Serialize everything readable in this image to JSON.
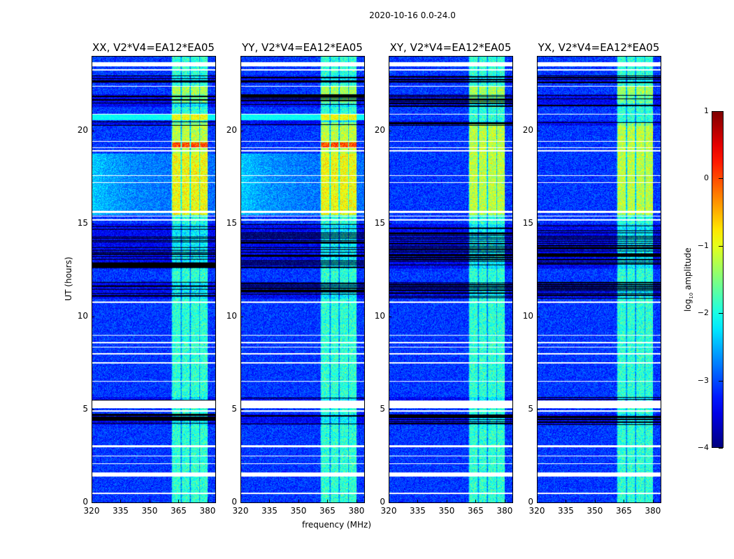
{
  "chart_data": {
    "type": "heatmap",
    "title": "2020-10-16 0.0-24.0",
    "xlabel": "frequency (MHz)",
    "ylabel": "UT (hours)",
    "xlim": [
      320,
      384
    ],
    "ylim": [
      0,
      24
    ],
    "xticks": [
      320,
      335,
      350,
      365,
      380
    ],
    "xtick_labels": [
      "320",
      "335",
      "350",
      "365",
      "380"
    ],
    "yticks": [
      0,
      5,
      10,
      15,
      20
    ],
    "ytick_labels": [
      "0",
      "5",
      "10",
      "15",
      "20"
    ],
    "panels": [
      {
        "title": "XX, V2*V4=EA12*EA05",
        "pol": "parallel"
      },
      {
        "title": "YY, V2*V4=EA12*EA05",
        "pol": "parallel"
      },
      {
        "title": "XY, V2*V4=EA12*EA05",
        "pol": "cross"
      },
      {
        "title": "YX, V2*V4=EA12*EA05",
        "pol": "cross"
      }
    ],
    "rfi_band_mhz": [
      361,
      380
    ],
    "flagged_hours": [
      [
        23.5,
        23.7
      ],
      [
        23.25,
        23.35
      ],
      [
        22.4,
        22.45
      ],
      [
        20.9,
        20.95
      ],
      [
        19.42,
        19.48
      ],
      [
        19.08,
        19.14
      ],
      [
        18.9,
        19.0
      ],
      [
        17.58,
        17.63
      ],
      [
        17.22,
        17.27
      ],
      [
        15.6,
        15.7
      ],
      [
        15.4,
        15.45
      ],
      [
        15.2,
        15.28
      ],
      [
        10.75,
        10.85
      ],
      [
        9.0,
        9.05
      ],
      [
        8.6,
        8.65
      ],
      [
        8.35,
        8.4
      ],
      [
        8.0,
        8.05
      ],
      [
        7.5,
        7.55
      ],
      [
        6.5,
        6.55
      ],
      [
        5.1,
        5.5
      ],
      [
        4.9,
        4.98
      ],
      [
        3.0,
        3.08
      ],
      [
        2.48,
        2.53
      ],
      [
        2.08,
        2.13
      ],
      [
        1.4,
        1.65
      ],
      [
        0.48,
        0.53
      ]
    ],
    "colorbar": {
      "label": "log10 amplitude",
      "colormap": "jet",
      "range": [
        -4,
        1
      ],
      "ticks": [
        1,
        0,
        -1,
        -2,
        -3,
        -4
      ],
      "tick_labels": [
        "1",
        "0",
        "−1",
        "−2",
        "−3",
        "−4"
      ]
    }
  }
}
